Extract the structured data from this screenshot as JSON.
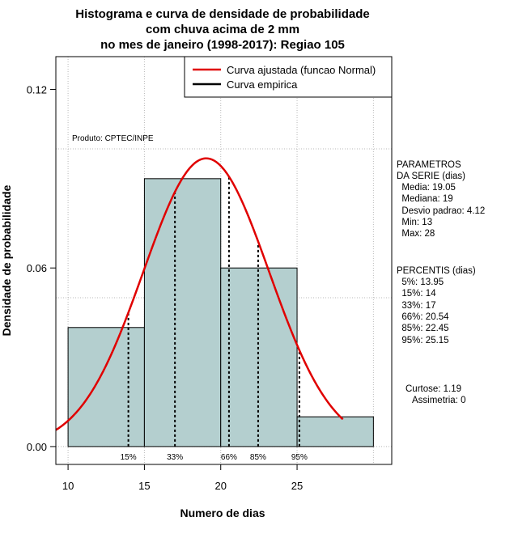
{
  "chart_data": {
    "type": "bar",
    "title": [
      "Histograma e curva de densidade de probabilidade",
      "com chuva acima de 2 mm",
      "no mes de janeiro (1998-2017): Regiao 105"
    ],
    "xlabel": "Numero de dias",
    "ylabel": "Densidade de probabilidade",
    "xlim": [
      9.2,
      31.2
    ],
    "ylim": [
      -0.006,
      0.131
    ],
    "x_ticks": [
      10,
      15,
      20,
      25
    ],
    "y_ticks": [
      0.0,
      0.06,
      0.12
    ],
    "x_tick_labels": [
      "10",
      "15",
      "20",
      "25"
    ],
    "y_tick_labels": [
      "0.00",
      "0.06",
      "0.12"
    ],
    "grid_x": [
      10,
      15,
      20,
      25,
      30
    ],
    "grid_y": [
      0.0,
      0.05,
      0.1
    ],
    "bars": [
      {
        "from": 10,
        "to": 15,
        "density": 0.04
      },
      {
        "from": 15,
        "to": 20,
        "density": 0.09
      },
      {
        "from": 20,
        "to": 25,
        "density": 0.06
      },
      {
        "from": 25,
        "to": 30,
        "density": 0.01
      }
    ],
    "normal_curve": {
      "name": "Curva ajustada (funcao Normal)",
      "mean": 19.05,
      "sd": 4.12,
      "x_range": [
        9.2,
        28
      ],
      "color": "#e00000"
    },
    "empirical_curve": {
      "name": "Curva empirica",
      "color": "#000000"
    },
    "percentile_lines": [
      {
        "x": 13.95,
        "label": "15%"
      },
      {
        "x": 17,
        "label": "33%"
      },
      {
        "x": 20.54,
        "label": "66%"
      },
      {
        "x": 22.45,
        "label": "85%"
      },
      {
        "x": 25.15,
        "label": "95%"
      }
    ],
    "legend": {
      "position": "top-right",
      "entries": [
        "Curva ajustada (funcao Normal)",
        "Curva empirica"
      ]
    },
    "bar_color": "#b4cfcf",
    "annotation": "Produto: CPTEC/INPE"
  },
  "side_panel": {
    "parametros": [
      "PARAMETROS",
      "DA SERIE (dias)",
      "  Media: 19.05",
      "  Mediana: 19",
      "  Desvio padrao: 4.12",
      "  Min: 13",
      "  Max: 28"
    ],
    "percentis": [
      "PERCENTIS (dias)",
      "  5%: 13.95",
      "  15%: 14",
      "  33%: 17",
      "  66%: 20.54",
      "  85%: 22.45",
      "  95%: 25.15"
    ],
    "curtose": "Curtose: 1.19",
    "assimetria": "Assimetria: 0"
  }
}
